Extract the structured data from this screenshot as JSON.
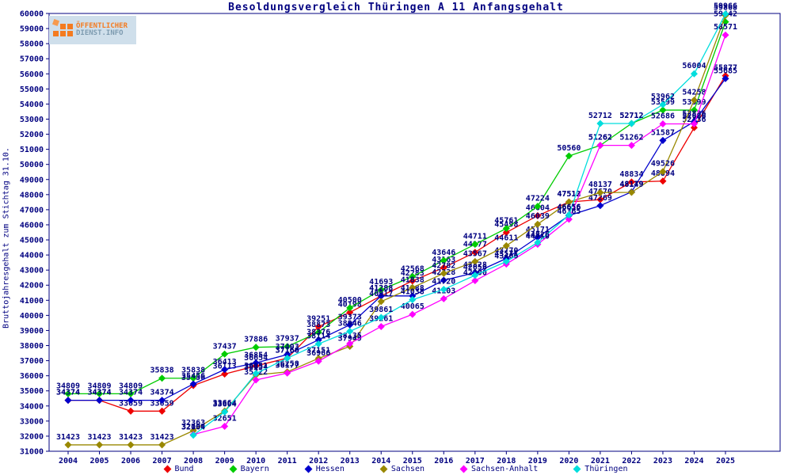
{
  "title": "Besoldungsvergleich Thüringen A 11 Anfangsgehalt",
  "logo": {
    "line1": "ÖFFENTLICHER",
    "line2": "DIENST.INFO",
    "accent_color": "#f47b20",
    "text2_color": "#7d9bb0",
    "bg_color": "#cfdfeb"
  },
  "frame_color": "#000080",
  "label_color": "#000080",
  "y_axis": {
    "label": "Bruttojahresgehalt zum Stichtag 31.10.",
    "min": 31000,
    "max": 60000,
    "step": 1000
  },
  "x_axis": {
    "years": [
      2004,
      2005,
      2006,
      2007,
      2008,
      2009,
      2010,
      2011,
      2012,
      2013,
      2014,
      2015,
      2016,
      2017,
      2018,
      2019,
      2020,
      2021,
      2022,
      2023,
      2024,
      2025
    ]
  },
  "chart_data": {
    "type": "line",
    "title": "Besoldungsvergleich Thüringen A 11 Anfangsgehalt",
    "xlabel": "",
    "ylabel": "Bruttojahresgehalt zum Stichtag 31.10.",
    "ylim": [
      31000,
      60000
    ],
    "grid": false,
    "legend_position": "bottom",
    "x": [
      2004,
      2005,
      2006,
      2007,
      2008,
      2009,
      2010,
      2011,
      2012,
      2013,
      2014,
      2015,
      2016,
      2017,
      2018,
      2019,
      2020,
      2021,
      2022,
      2023,
      2024,
      2025
    ],
    "series": [
      {
        "name": "Bund",
        "color": "#ee0000",
        "values": [
          34374,
          34374,
          33659,
          33659,
          35356,
          36113,
          36654,
          37166,
          39251,
          40198,
          41288,
          42283,
          43163,
          44177,
          45498,
          46604,
          47513,
          47670,
          48834,
          48894,
          52436,
          55877
        ]
      },
      {
        "name": "Bayern",
        "color": "#00cc00",
        "values": [
          34809,
          34809,
          34809,
          35838,
          35838,
          37437,
          37886,
          37937,
          38873,
          40500,
          41693,
          42568,
          43646,
          44711,
          45761,
          47224,
          50560,
          51262,
          52712,
          53599,
          53599,
          59442
        ]
      },
      {
        "name": "Hessen",
        "color": "#0000cc",
        "values": [
          34374,
          34374,
          34374,
          34374,
          35456,
          36413,
          36854,
          37403,
          38376,
          39373,
          41288,
          41288,
          42328,
          42828,
          43770,
          45171,
          46616,
          47269,
          48179,
          51587,
          52836,
          55685
        ]
      },
      {
        "name": "Sachsen",
        "color": "#998800",
        "values": [
          31423,
          31423,
          31423,
          31423,
          32363,
          33664,
          36054,
          36258,
          37151,
          37949,
          40917,
          41838,
          42782,
          43567,
          44611,
          46039,
          47512,
          48137,
          48149,
          49526,
          54258,
          59868
        ]
      },
      {
        "name": "Sachsen-Anhalt",
        "color": "#ff00ff",
        "values": [
          null,
          null,
          null,
          null,
          32109,
          32651,
          35722,
          36177,
          36966,
          38135,
          39261,
          40065,
          41103,
          42300,
          43400,
          44710,
          46365,
          51262,
          51262,
          52686,
          52686,
          58571
        ]
      },
      {
        "name": "Thüringen",
        "color": "#00dddd",
        "values": [
          null,
          null,
          null,
          null,
          32064,
          33604,
          36151,
          37166,
          38114,
          38946,
          39861,
          41038,
          41720,
          42656,
          43571,
          44826,
          46656,
          52712,
          52712,
          53962,
          56004,
          59966
        ]
      }
    ]
  },
  "legend": [
    {
      "label": "Bund",
      "color": "#ee0000"
    },
    {
      "label": "Bayern",
      "color": "#00cc00"
    },
    {
      "label": "Hessen",
      "color": "#0000cc"
    },
    {
      "label": "Sachsen",
      "color": "#998800"
    },
    {
      "label": "Sachsen-Anhalt",
      "color": "#ff00ff"
    },
    {
      "label": "Thüringen",
      "color": "#00dddd"
    }
  ]
}
